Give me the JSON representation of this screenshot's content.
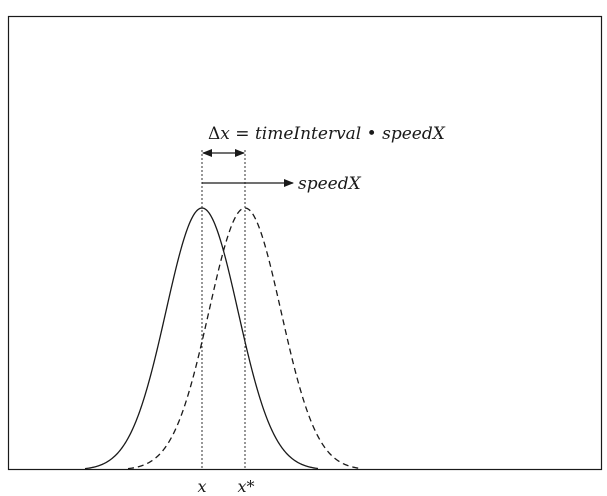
{
  "diagram": {
    "equation": {
      "delta": "Δ",
      "lhs_var": "x",
      "equals": " = ",
      "rhs": "timeInterval",
      "dot": " • ",
      "speed": "speedX"
    },
    "velocity_label": "speedX",
    "x_label": "x",
    "xstar_label": "x*",
    "colors": {
      "stroke": "#1a1a1a",
      "background": "#ffffff"
    }
  }
}
